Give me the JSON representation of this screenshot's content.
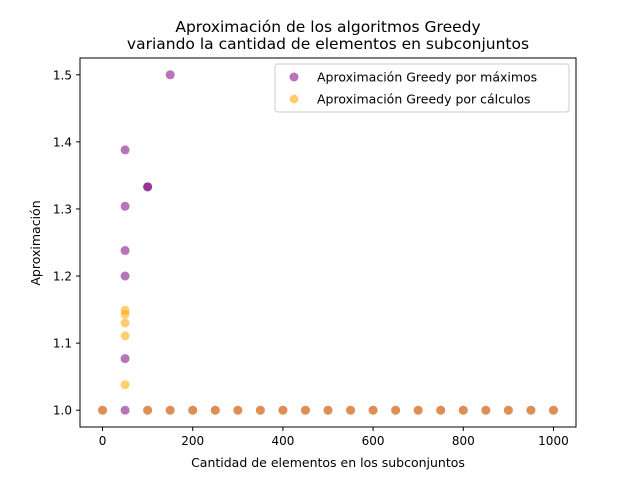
{
  "chart_data": {
    "type": "scatter",
    "title": "Aproximación de los algoritmos Greedy",
    "subtitle": "variando la cantidad de elementos en subconjuntos",
    "xlabel": "Cantidad de elementos en los subconjuntos",
    "ylabel": "Aproximación",
    "xlim": [
      -50,
      1050
    ],
    "ylim": [
      0.975,
      1.525
    ],
    "xticks": [
      0,
      200,
      400,
      600,
      800,
      1000
    ],
    "yticks": [
      1.0,
      1.1,
      1.2,
      1.3,
      1.4,
      1.5
    ],
    "ytick_labels": [
      "1.0",
      "1.1",
      "1.2",
      "1.3",
      "1.4",
      "1.5"
    ],
    "grid": false,
    "legend_position": "top-right",
    "series": [
      {
        "name": "Aproximación Greedy por máximos",
        "color": "#800080",
        "points": [
          [
            0,
            1.0
          ],
          [
            50,
            1.388
          ],
          [
            50,
            1.304
          ],
          [
            50,
            1.238
          ],
          [
            50,
            1.2
          ],
          [
            50,
            1.077
          ],
          [
            50,
            1.0
          ],
          [
            100,
            1.333
          ],
          [
            100,
            1.333
          ],
          [
            100,
            1.0
          ],
          [
            150,
            1.5
          ],
          [
            150,
            1.0
          ],
          [
            200,
            1.0
          ],
          [
            250,
            1.0
          ],
          [
            300,
            1.0
          ],
          [
            350,
            1.0
          ],
          [
            400,
            1.0
          ],
          [
            450,
            1.0
          ],
          [
            500,
            1.0
          ],
          [
            550,
            1.0
          ],
          [
            600,
            1.0
          ],
          [
            650,
            1.0
          ],
          [
            700,
            1.0
          ],
          [
            750,
            1.0
          ],
          [
            800,
            1.0
          ],
          [
            850,
            1.0
          ],
          [
            900,
            1.0
          ],
          [
            950,
            1.0
          ],
          [
            1000,
            1.0
          ]
        ]
      },
      {
        "name": "Aproximación Greedy por cálculos",
        "color": "#FFA500",
        "points": [
          [
            0,
            1.0
          ],
          [
            50,
            1.149
          ],
          [
            50,
            1.143
          ],
          [
            50,
            1.13
          ],
          [
            50,
            1.111
          ],
          [
            50,
            1.038
          ],
          [
            100,
            1.0
          ],
          [
            150,
            1.0
          ],
          [
            200,
            1.0
          ],
          [
            250,
            1.0
          ],
          [
            300,
            1.0
          ],
          [
            350,
            1.0
          ],
          [
            400,
            1.0
          ],
          [
            450,
            1.0
          ],
          [
            500,
            1.0
          ],
          [
            550,
            1.0
          ],
          [
            600,
            1.0
          ],
          [
            650,
            1.0
          ],
          [
            700,
            1.0
          ],
          [
            750,
            1.0
          ],
          [
            800,
            1.0
          ],
          [
            850,
            1.0
          ],
          [
            900,
            1.0
          ],
          [
            950,
            1.0
          ],
          [
            1000,
            1.0
          ]
        ]
      }
    ]
  }
}
